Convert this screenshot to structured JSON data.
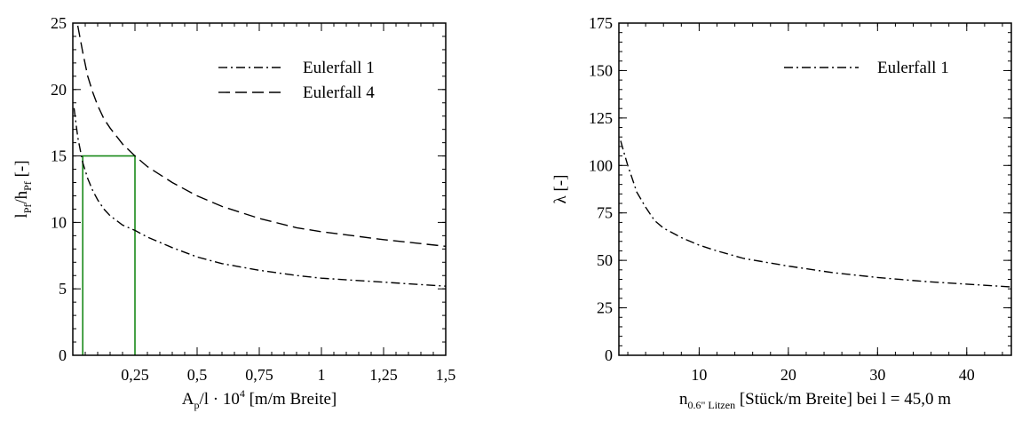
{
  "chart_data": [
    {
      "type": "line",
      "xlim": [
        0,
        1.5
      ],
      "ylim": [
        0,
        25
      ],
      "x_ticks": [
        {
          "v": 0.25,
          "label": "0,25"
        },
        {
          "v": 0.5,
          "label": "0,5"
        },
        {
          "v": 0.75,
          "label": "0,75"
        },
        {
          "v": 1.0,
          "label": "1"
        },
        {
          "v": 1.25,
          "label": "1,25"
        },
        {
          "v": 1.5,
          "label": "1,5"
        }
      ],
      "y_ticks": [
        {
          "v": 0,
          "label": "0"
        },
        {
          "v": 5,
          "label": "5"
        },
        {
          "v": 10,
          "label": "10"
        },
        {
          "v": 15,
          "label": "15"
        },
        {
          "v": 20,
          "label": "20"
        },
        {
          "v": 25,
          "label": "25"
        }
      ],
      "xlabel": {
        "main": "A",
        "sub": "p",
        "rest": "/l · 10",
        "sup": "4",
        "tail": " [m/m Breite]"
      },
      "ylabel": {
        "parts": [
          {
            "t": "l",
            "k": "n"
          },
          {
            "t": "Pf",
            "k": "s"
          },
          {
            "t": "/h",
            "k": "n"
          },
          {
            "t": "Pf",
            "k": "s"
          },
          {
            "t": " [-]",
            "k": "n"
          }
        ]
      },
      "grid": false,
      "legend_position": "top-right",
      "series": [
        {
          "name": "Eulerfall 1",
          "style": "dashdot",
          "x": [
            0.005,
            0.02,
            0.04,
            0.06,
            0.08,
            0.1,
            0.125,
            0.15,
            0.2,
            0.25,
            0.3,
            0.4,
            0.5,
            0.6,
            0.75,
            0.9,
            1.0,
            1.25,
            1.5
          ],
          "y": [
            18.6,
            16.4,
            14.5,
            13.3,
            12.4,
            11.7,
            11.0,
            10.5,
            9.8,
            9.4,
            8.9,
            8.1,
            7.4,
            6.9,
            6.4,
            6.0,
            5.8,
            5.5,
            5.2
          ]
        },
        {
          "name": "Eulerfall 4",
          "style": "longdash",
          "x": [
            0.02,
            0.04,
            0.06,
            0.08,
            0.1,
            0.125,
            0.15,
            0.2,
            0.25,
            0.3,
            0.4,
            0.5,
            0.6,
            0.75,
            0.9,
            1.0,
            1.25,
            1.5
          ],
          "y": [
            24.8,
            22.8,
            21.0,
            19.8,
            18.8,
            17.8,
            17.1,
            15.9,
            15.0,
            14.2,
            13.0,
            12.0,
            11.2,
            10.3,
            9.6,
            9.3,
            8.7,
            8.2
          ]
        }
      ],
      "markers": [
        {
          "x": [
            0.04,
            0.04,
            0.25,
            0.25
          ],
          "y": [
            0,
            15,
            15,
            0
          ],
          "color": "#1a8a1a"
        }
      ]
    },
    {
      "type": "line",
      "xlim": [
        1,
        45
      ],
      "ylim": [
        0,
        175
      ],
      "x_ticks": [
        {
          "v": 10,
          "label": "10"
        },
        {
          "v": 20,
          "label": "20"
        },
        {
          "v": 30,
          "label": "30"
        },
        {
          "v": 40,
          "label": "40"
        }
      ],
      "y_ticks": [
        {
          "v": 0,
          "label": "0"
        },
        {
          "v": 25,
          "label": "25"
        },
        {
          "v": 50,
          "label": "50"
        },
        {
          "v": 75,
          "label": "75"
        },
        {
          "v": 100,
          "label": "100"
        },
        {
          "v": 125,
          "label": "125"
        },
        {
          "v": 150,
          "label": "150"
        },
        {
          "v": 175,
          "label": "175"
        }
      ],
      "xlabel": {
        "main": "n",
        "sub": "0.6\" Litzen",
        "tail": " [Stück/m Breite] bei l = 45,0 m"
      },
      "ylabel": {
        "parts": [
          {
            "t": "λ [-]",
            "k": "n"
          }
        ]
      },
      "grid": false,
      "legend_position": "top-right",
      "series": [
        {
          "name": "Eulerfall 1",
          "style": "dashdot",
          "x": [
            1.2,
            1.5,
            2,
            2.5,
            3,
            4,
            5,
            6,
            8,
            10,
            12,
            15,
            20,
            25,
            30,
            35,
            40,
            45
          ],
          "y": [
            113,
            108,
            100,
            93,
            86,
            78,
            71,
            67,
            62,
            58,
            55,
            51,
            47,
            43.5,
            41,
            39,
            37.5,
            36
          ]
        }
      ]
    }
  ]
}
